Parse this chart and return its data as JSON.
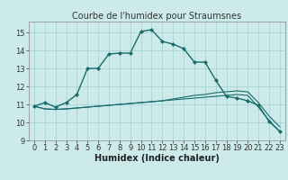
{
  "title": "Courbe de l'humidex pour Straumsnes",
  "xlabel": "Humidex (Indice chaleur)",
  "bg_color": "#cceaea",
  "grid_color": "#aad4d4",
  "line_color": "#1a6b6b",
  "xlim": [
    -0.5,
    23.5
  ],
  "ylim": [
    9,
    15.6
  ],
  "yticks": [
    9,
    10,
    11,
    12,
    13,
    14,
    15
  ],
  "xticks": [
    0,
    1,
    2,
    3,
    4,
    5,
    6,
    7,
    8,
    9,
    10,
    11,
    12,
    13,
    14,
    15,
    16,
    17,
    18,
    19,
    20,
    21,
    22,
    23
  ],
  "curve1_x": [
    0,
    1,
    2,
    3,
    4,
    5,
    6,
    7,
    8,
    9,
    10,
    11,
    12,
    13,
    14,
    15,
    16,
    17,
    18,
    19,
    20,
    21,
    22,
    23
  ],
  "curve1_y": [
    10.9,
    11.1,
    10.85,
    11.1,
    11.55,
    13.0,
    13.0,
    13.8,
    13.85,
    13.85,
    15.05,
    15.15,
    14.5,
    14.35,
    14.1,
    13.35,
    13.35,
    12.35,
    11.45,
    11.35,
    11.2,
    10.95,
    10.05,
    9.5
  ],
  "curve2_x": [
    0,
    1,
    2,
    3,
    4,
    5,
    6,
    7,
    8,
    9,
    10,
    11,
    12,
    13,
    14,
    15,
    16,
    17,
    18,
    19,
    20,
    21,
    22,
    23
  ],
  "curve2_y": [
    10.9,
    10.75,
    10.72,
    10.75,
    10.8,
    10.85,
    10.9,
    10.95,
    11.0,
    11.05,
    11.1,
    11.15,
    11.2,
    11.25,
    11.3,
    11.35,
    11.4,
    11.45,
    11.5,
    11.55,
    11.5,
    10.85,
    10.1,
    9.5
  ],
  "curve3_x": [
    0,
    1,
    2,
    3,
    4,
    5,
    6,
    7,
    8,
    9,
    10,
    11,
    12,
    13,
    14,
    15,
    16,
    17,
    18,
    19,
    20,
    21,
    22,
    23
  ],
  "curve3_y": [
    10.9,
    10.75,
    10.72,
    10.75,
    10.8,
    10.85,
    10.9,
    10.95,
    11.0,
    11.05,
    11.1,
    11.15,
    11.2,
    11.3,
    11.4,
    11.5,
    11.55,
    11.65,
    11.7,
    11.75,
    11.7,
    11.1,
    10.35,
    9.75
  ],
  "title_fontsize": 7,
  "xlabel_fontsize": 7,
  "tick_fontsize": 6
}
